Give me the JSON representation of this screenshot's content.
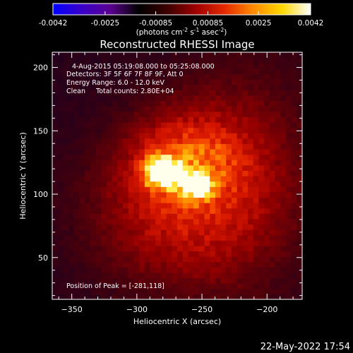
{
  "colorbar": {
    "ticks": [
      "-0.0042",
      "-0.0025",
      "-0.00085",
      "0.00085",
      "0.0025",
      "0.0042"
    ],
    "tick_values": [
      -0.0042,
      -0.0025,
      -0.00085,
      0.00085,
      0.0025,
      0.0042
    ],
    "range": [
      -0.0042,
      0.0042
    ],
    "units_main": "(photons cm",
    "units_sup1": "-2",
    "units_mid": " s",
    "units_sup2": "-1",
    "units_tail": " asec",
    "units_sup3": "-2",
    "units_close": ")",
    "palette": [
      "#0000ff",
      "#3a00c8",
      "#5a0090",
      "#000000",
      "#3c0000",
      "#a00000",
      "#e42a00",
      "#ff8a00",
      "#ffd800",
      "#ffffff"
    ]
  },
  "chart_data": {
    "type": "heatmap",
    "title": "Reconstructed RHESSI Image",
    "info_lines": [
      "4-Aug-2015 05:19:08.000 to 05:25:08.000",
      "Detectors: 3F 5F 6F 7F 8F 9F, Att 0",
      "Energy Range: 6.0 - 12.0 keV",
      "Clean     Total counts: 2.80E+04"
    ],
    "peak_label": "Position of Peak = [-281,118]",
    "xlabel": "Heliocentric X (arcsec)",
    "ylabel": "Heliocentric Y (arcsec)",
    "xlim": [
      -365,
      -173
    ],
    "ylim": [
      17,
      212
    ],
    "xticks": [
      -350,
      -300,
      -250,
      -200
    ],
    "yticks": [
      50,
      100,
      150,
      200
    ],
    "peak": [
      -281,
      118
    ],
    "sources": [
      {
        "x": -281,
        "y": 118,
        "sx": 9,
        "sy": 8,
        "amp": 1.0
      },
      {
        "x": -254,
        "y": 107,
        "sx": 8,
        "sy": 7,
        "amp": 0.78
      },
      {
        "x": -262,
        "y": 128,
        "sx": 30,
        "sy": 24,
        "amp": 0.38
      },
      {
        "x": -272,
        "y": 85,
        "sx": 45,
        "sy": 40,
        "amp": 0.3
      },
      {
        "x": -222,
        "y": 118,
        "sx": 40,
        "sy": 60,
        "amp": 0.22
      }
    ]
  },
  "footer": {
    "timestamp": "22-May-2022 17:54"
  }
}
